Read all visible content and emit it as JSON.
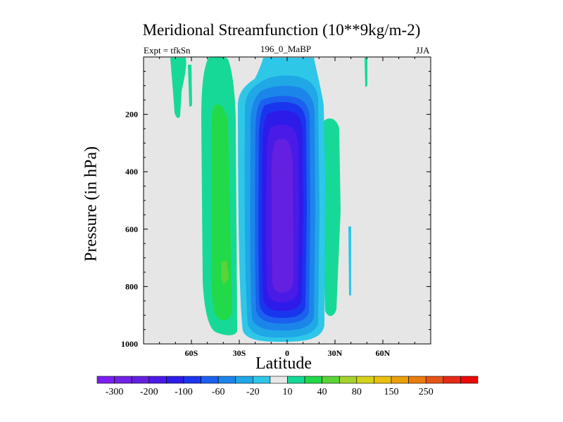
{
  "chart_data": {
    "type": "heatmap",
    "title": "Meridional Streamfunction (10**9kg/m-2)",
    "subtitle_left": "Expt = tfkSn",
    "subtitle_center": "196_0_MaBP",
    "subtitle_right": "JJA",
    "xlabel": "Latitude",
    "ylabel": "Pressure (in hPa)",
    "xlim": [
      -90,
      90
    ],
    "ylim": [
      1000,
      0
    ],
    "x_ticks": [
      {
        "value": -60,
        "label": "60S"
      },
      {
        "value": -30,
        "label": "30S"
      },
      {
        "value": 0,
        "label": "0"
      },
      {
        "value": 30,
        "label": "30N"
      },
      {
        "value": 60,
        "label": "60N"
      }
    ],
    "y_ticks": [
      {
        "value": 200,
        "label": "200"
      },
      {
        "value": 400,
        "label": "400"
      },
      {
        "value": 600,
        "label": "600"
      },
      {
        "value": 800,
        "label": "800"
      },
      {
        "value": 1000,
        "label": "1000"
      }
    ],
    "background_color": "#e6e6e6",
    "colorbar": {
      "colors": [
        "#7b1ff0",
        "#7222e6",
        "#6420e0",
        "#4a1be6",
        "#2d1bea",
        "#1a35ee",
        "#1b60ee",
        "#1c85ea",
        "#20a7e6",
        "#2ec7e8",
        "#e8e8e8",
        "#16d998",
        "#22d94a",
        "#5ad436",
        "#a6d22e",
        "#d6d11c",
        "#e8c00d",
        "#eaa00a",
        "#ea7c10",
        "#e65418",
        "#e62a16",
        "#ea0808"
      ],
      "labels": [
        "-300",
        "-200",
        "-100",
        "-60",
        "-20",
        "10",
        "40",
        "80",
        "150",
        "250"
      ]
    },
    "regions": [
      {
        "name": "southern-hadley-cell",
        "lat_range": [
          -22,
          17
        ],
        "p_range": [
          0,
          990
        ],
        "min_value": -200,
        "sign": "negative"
      },
      {
        "name": "southern-ferrel-cell",
        "lat_range": [
          -55,
          -22
        ],
        "p_range": [
          80,
          950
        ],
        "max_value": 40,
        "sign": "positive"
      },
      {
        "name": "northern-positive-cell",
        "lat_range": [
          15,
          28
        ],
        "p_range": [
          200,
          950
        ],
        "max_value": 10,
        "sign": "positive"
      },
      {
        "name": "polar-positive-strip",
        "lat_range": [
          -72,
          -62
        ],
        "p_range": [
          0,
          190
        ],
        "max_value": 10,
        "sign": "positive"
      },
      {
        "name": "northern-negative-strip",
        "lat_range": [
          38,
          40
        ],
        "p_range": [
          640,
          820
        ],
        "max_value": -20,
        "sign": "negative"
      }
    ]
  }
}
